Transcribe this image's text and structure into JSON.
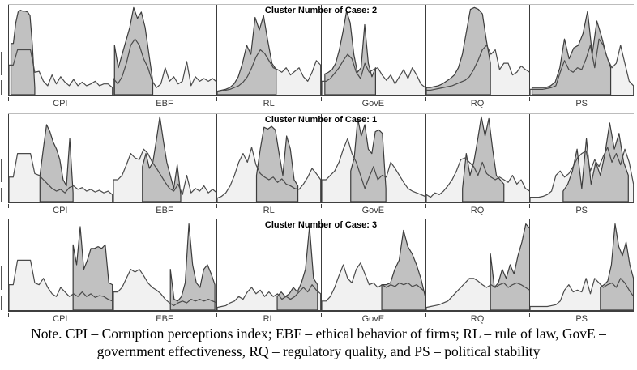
{
  "colors": {
    "light_fill": "#f1f1f1",
    "dark_fill": "#c1c1c1",
    "overall_stroke": "#4a4a4a",
    "cluster_stroke": "#3c3c3c",
    "baseline": "#3f3f3f",
    "panel_divider": "#3c3c3c",
    "strip_top_line": "#bcbcbc",
    "label_color": "#3a3a3a"
  },
  "note": {
    "line1": "Note. CPI – Corruption perceptions index; EBF – ethical behavior of firms; RL – rule of law, GovE –",
    "line2": "government effectiveness, RQ – regulatory quality, and PS – political stability"
  },
  "chart_data": {
    "type": "area",
    "layout": "small-multiples: 3 cluster rows x 6 variable panels; each panel overlays the full-sample curve (light fill, full width) with the cluster-range curve (dark fill over highlighted x-range); y = relative frequency (unlabeled), x unlabeled",
    "legend": "none",
    "grid": false,
    "y_scale": "values are percent of panel height (0-100)",
    "rows": [
      {
        "title": "Cluster Number of Case: 2",
        "panels": [
          {
            "label": "CPI",
            "overall": [
              33,
              33,
              50,
              50,
              50,
              50,
              25,
              26,
              15,
              10,
              22,
              12,
              20,
              14,
              10,
              17,
              10,
              14,
              10,
              12,
              15,
              10,
              12,
              12,
              8
            ],
            "region": [
              0.02,
              0.25
            ],
            "cluster": [
              57,
              57,
              80,
              92,
              94,
              93,
              93,
              92,
              88,
              55,
              8
            ]
          },
          {
            "label": "EBF",
            "overall": [
              18,
              12,
              20,
              35,
              55,
              62,
              55,
              40,
              30,
              15,
              8,
              12,
              30,
              15,
              20,
              12,
              15,
              37,
              10,
              20,
              15,
              18,
              15,
              18,
              14
            ],
            "region": [
              0.01,
              0.38
            ],
            "cluster": [
              55,
              30,
              45,
              60,
              75,
              97,
              85,
              92,
              75,
              45,
              15
            ]
          },
          {
            "label": "RL",
            "overall": [
              3,
              4,
              5,
              6,
              8,
              10,
              14,
              20,
              30,
              42,
              50,
              46,
              38,
              30,
              28,
              25,
              30,
              22,
              26,
              30,
              20,
              15,
              25,
              38,
              33
            ],
            "region": [
              0.0,
              0.57
            ],
            "cluster": [
              4,
              5,
              6,
              8,
              12,
              20,
              35,
              55,
              45,
              86,
              72,
              88,
              60,
              35,
              28
            ]
          },
          {
            "label": "GovE",
            "overall": [
              15,
              15,
              18,
              24,
              30,
              38,
              45,
              40,
              25,
              18,
              35,
              25,
              28,
              30,
              22,
              16,
              22,
              12,
              20,
              28,
              18,
              30,
              22,
              12,
              8
            ],
            "region": [
              0.03,
              0.52
            ],
            "cluster": [
              23,
              25,
              28,
              35,
              50,
              70,
              93,
              80,
              45,
              25,
              30,
              78,
              35,
              20,
              30
            ]
          },
          {
            "label": "RQ",
            "overall": [
              5,
              5,
              6,
              7,
              8,
              9,
              10,
              12,
              14,
              16,
              20,
              28,
              38,
              50,
              55,
              45,
              50,
              28,
              35,
              35,
              22,
              25,
              32,
              28,
              25
            ],
            "region": [
              0.0,
              0.62
            ],
            "cluster": [
              8,
              8,
              9,
              10,
              12,
              15,
              18,
              22,
              30,
              45,
              70,
              95,
              97,
              95,
              90,
              60,
              35
            ]
          },
          {
            "label": "PS",
            "overall": [
              6,
              6,
              6,
              6,
              7,
              8,
              10,
              25,
              38,
              28,
              25,
              30,
              28,
              40,
              55,
              30,
              62,
              55,
              40,
              30,
              35,
              55,
              35,
              15,
              10
            ],
            "region": [
              0.02,
              0.78
            ],
            "cluster": [
              8,
              8,
              8,
              8,
              10,
              14,
              30,
              62,
              40,
              52,
              55,
              68,
              93,
              45,
              82,
              65,
              45,
              30
            ]
          }
        ]
      },
      {
        "title": "Cluster Number of Case: 1",
        "panels": [
          {
            "label": "CPI",
            "overall": [
              28,
              28,
              55,
              55,
              55,
              55,
              32,
              30,
              25,
              20,
              15,
              12,
              14,
              10,
              16,
              18,
              14,
              16,
              12,
              14,
              11,
              13,
              10,
              12,
              8
            ],
            "region": [
              0.3,
              0.62
            ],
            "cluster": [
              30,
              60,
              88,
              80,
              68,
              60,
              48,
              25,
              18,
              72,
              10
            ]
          },
          {
            "label": "EBF",
            "overall": [
              25,
              25,
              30,
              42,
              55,
              50,
              48,
              60,
              55,
              45,
              38,
              30,
              22,
              15,
              12,
              20,
              8,
              30,
              10,
              15,
              12,
              18,
              10,
              14,
              10
            ],
            "region": [
              0.28,
              0.65
            ],
            "cluster": [
              40,
              55,
              38,
              45,
              70,
              97,
              70,
              45,
              30,
              15,
              42,
              8
            ]
          },
          {
            "label": "RL",
            "overall": [
              4,
              6,
              10,
              18,
              30,
              45,
              55,
              45,
              62,
              42,
              32,
              28,
              25,
              28,
              22,
              26,
              20,
              18,
              15,
              14,
              20,
              28,
              38,
              32,
              25
            ],
            "region": [
              0.38,
              0.78
            ],
            "cluster": [
              30,
              60,
              85,
              83,
              86,
              82,
              55,
              30,
              75,
              60,
              25,
              18
            ]
          },
          {
            "label": "GovE",
            "overall": [
              25,
              25,
              30,
              35,
              45,
              60,
              72,
              55,
              45,
              30,
              15,
              28,
              40,
              25,
              30,
              28,
              45,
              38,
              30,
              22,
              15,
              12,
              10,
              8,
              6
            ],
            "region": [
              0.28,
              0.62
            ],
            "cluster": [
              35,
              50,
              95,
              75,
              88,
              60,
              55,
              80,
              82,
              78,
              15
            ]
          },
          {
            "label": "RQ",
            "overall": [
              8,
              5,
              10,
              8,
              12,
              18,
              25,
              35,
              48,
              50,
              45,
              40,
              30,
              45,
              32,
              28,
              25,
              28,
              25,
              22,
              30,
              20,
              25,
              15,
              12
            ],
            "region": [
              0.35,
              0.75
            ],
            "cluster": [
              15,
              55,
              30,
              45,
              70,
              97,
              75,
              95,
              60,
              30,
              25,
              20
            ]
          },
          {
            "label": "PS",
            "overall": [
              5,
              5,
              5,
              6,
              8,
              12,
              30,
              35,
              28,
              32,
              40,
              50,
              55,
              58,
              35,
              48,
              40,
              52,
              62,
              45,
              55,
              42,
              60,
              45,
              20
            ],
            "region": [
              0.32,
              0.95
            ],
            "cluster": [
              12,
              20,
              35,
              60,
              15,
              72,
              20,
              45,
              30,
              55,
              90,
              60,
              78,
              45,
              30
            ]
          }
        ]
      },
      {
        "title": "Cluster Number of Case: 3",
        "panels": [
          {
            "label": "CPI",
            "overall": [
              28,
              28,
              55,
              55,
              55,
              55,
              30,
              28,
              35,
              25,
              18,
              15,
              25,
              20,
              15,
              18,
              15,
              20,
              15,
              18,
              14,
              16,
              15,
              12,
              10
            ],
            "region": [
              0.62,
              1.0
            ],
            "cluster": [
              72,
              50,
              92,
              45,
              55,
              68,
              68,
              70,
              68,
              72,
              30,
              28
            ]
          },
          {
            "label": "EBF",
            "overall": [
              20,
              20,
              25,
              35,
              45,
              42,
              45,
              38,
              30,
              25,
              22,
              18,
              12,
              8,
              5,
              8,
              10,
              8,
              12,
              10,
              12,
              10,
              12,
              10,
              8
            ],
            "region": [
              0.55,
              0.98
            ],
            "cluster": [
              45,
              12,
              10,
              15,
              30,
              95,
              50,
              30,
              25,
              45,
              50,
              40,
              28
            ]
          },
          {
            "label": "RL",
            "overall": [
              3,
              4,
              5,
              8,
              10,
              15,
              12,
              20,
              25,
              18,
              22,
              15,
              20,
              15,
              18,
              12,
              15,
              12,
              15,
              20,
              25,
              20,
              28,
              22,
              18
            ],
            "region": [
              0.58,
              0.97
            ],
            "cluster": [
              15,
              20,
              15,
              18,
              25,
              20,
              30,
              45,
              92,
              35,
              28
            ]
          },
          {
            "label": "GovE",
            "overall": [
              10,
              10,
              15,
              25,
              38,
              50,
              35,
              30,
              45,
              52,
              40,
              28,
              30,
              25,
              28,
              25,
              28,
              26,
              30,
              28,
              30,
              26,
              28,
              24,
              20
            ],
            "region": [
              0.58,
              1.0
            ],
            "cluster": [
              28,
              28,
              30,
              45,
              55,
              88,
              70,
              62,
              50,
              35,
              15
            ]
          },
          {
            "label": "RQ",
            "overall": [
              3,
              4,
              5,
              6,
              8,
              10,
              15,
              20,
              25,
              30,
              35,
              35,
              32,
              28,
              25,
              28,
              25,
              28,
              30,
              25,
              28,
              30,
              28,
              25,
              22
            ],
            "region": [
              0.62,
              1.0
            ],
            "cluster": [
              62,
              25,
              30,
              45,
              35,
              50,
              40,
              60,
              75,
              95,
              90
            ]
          },
          {
            "label": "PS",
            "overall": [
              4,
              4,
              4,
              4,
              4,
              5,
              6,
              10,
              22,
              28,
              20,
              22,
              20,
              35,
              18,
              35,
              30,
              25,
              28,
              30,
              25,
              35,
              30,
              22,
              15
            ],
            "region": [
              0.68,
              1.0
            ],
            "cluster": [
              25,
              28,
              32,
              50,
              95,
              70,
              60,
              75,
              50,
              35
            ]
          }
        ]
      }
    ]
  }
}
